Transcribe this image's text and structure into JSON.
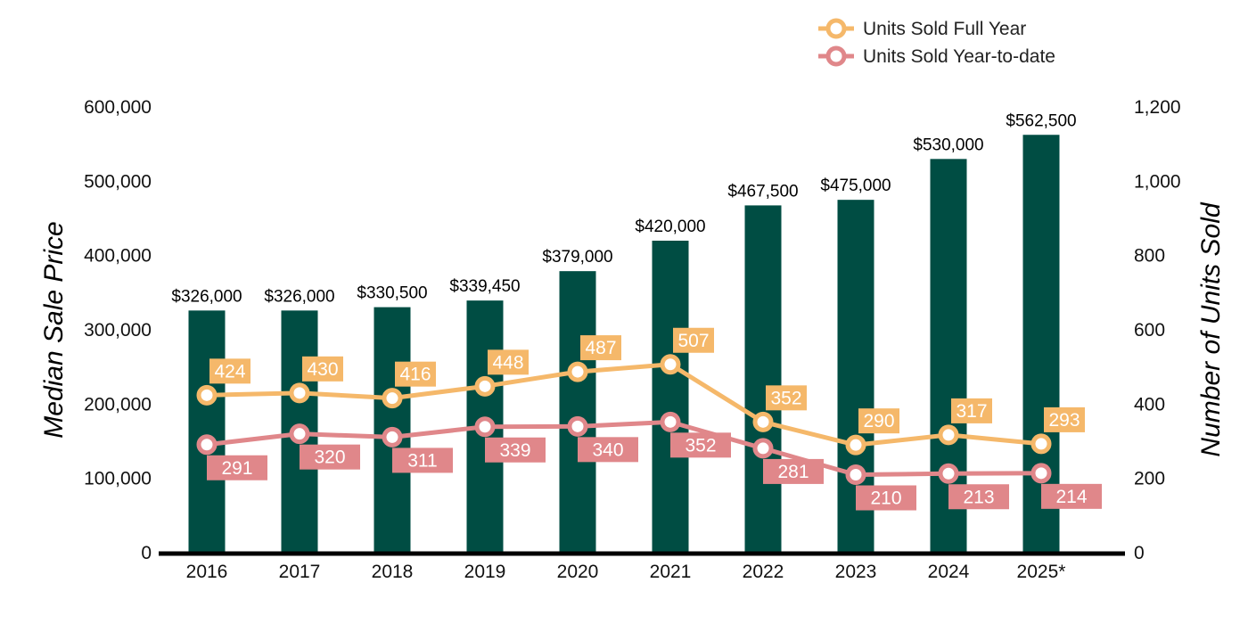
{
  "chart_data": {
    "type": "bar",
    "categories": [
      "2016",
      "2017",
      "2018",
      "2019",
      "2020",
      "2021",
      "2022",
      "2023",
      "2024",
      "2025*"
    ],
    "bar_series": {
      "values": [
        326000,
        326000,
        330500,
        339450,
        379000,
        420000,
        467500,
        475000,
        530000,
        562500
      ],
      "labels": [
        "$326,000",
        "$326,000",
        "$330,500",
        "$339,450",
        "$379,000",
        "$420,000",
        "$467,500",
        "$475,000",
        "$530,000",
        "$562,500"
      ],
      "color": "#004d43",
      "axis": "left"
    },
    "series": [
      {
        "name": "Units Sold Full Year",
        "type": "line",
        "axis": "right",
        "values": [
          424,
          430,
          416,
          448,
          487,
          507,
          352,
          290,
          317,
          293
        ],
        "color": "#f5b86a",
        "label_position": "above"
      },
      {
        "name": "Units Sold Year-to-date",
        "type": "line",
        "axis": "right",
        "values": [
          291,
          320,
          311,
          339,
          340,
          352,
          281,
          210,
          213,
          214
        ],
        "color": "#e0878a",
        "label_position": "below"
      }
    ],
    "left_axis": {
      "label": "Median Sale Price",
      "range": [
        0,
        600000
      ],
      "ticks": [
        "0",
        "100,000",
        "200,000",
        "300,000",
        "400,000",
        "500,000",
        "600,000"
      ]
    },
    "right_axis": {
      "label": "Number of Units Sold",
      "range": [
        0,
        1200
      ],
      "ticks": [
        "0",
        "200",
        "400",
        "600",
        "800",
        "1,000",
        "1,200"
      ]
    },
    "legend": {
      "position": "top-right",
      "entries": [
        "Units Sold Full Year",
        "Units Sold Year-to-date"
      ]
    },
    "grid": false
  }
}
